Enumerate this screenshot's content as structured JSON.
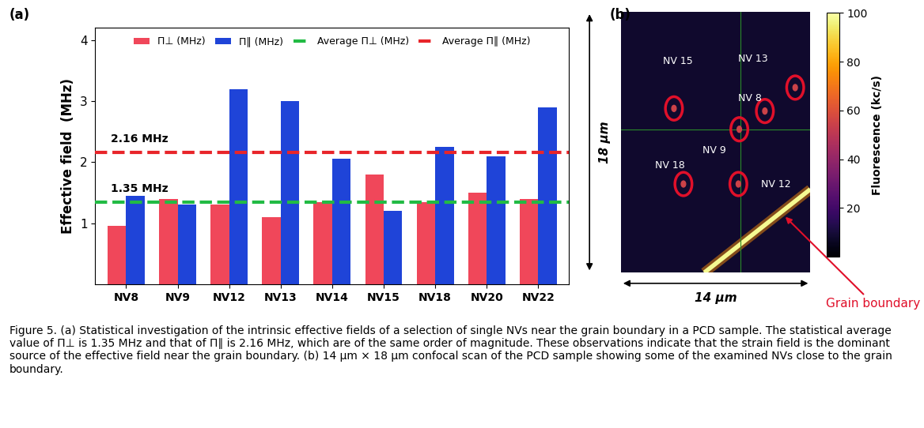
{
  "chart_data": {
    "type": "bar",
    "panel_label": "(a)",
    "categories": [
      "NV8",
      "NV9",
      "NV12",
      "NV13",
      "NV14",
      "NV15",
      "NV18",
      "NV20",
      "NV22"
    ],
    "series": [
      {
        "name": "Π⊥ (MHz)",
        "color": "#f0475a",
        "values": [
          0.95,
          1.4,
          1.3,
          1.1,
          1.35,
          1.8,
          1.35,
          1.5,
          1.4
        ]
      },
      {
        "name": "Π∥ (MHz)",
        "color": "#1f44d8",
        "values": [
          1.45,
          1.3,
          3.2,
          3.0,
          2.05,
          1.2,
          2.25,
          2.1,
          2.9
        ]
      }
    ],
    "reference_lines": [
      {
        "name": "Average Π⊥ (MHz)",
        "color": "#22bb44",
        "value": 1.35,
        "label": "1.35 MHz",
        "line_style": "dashed"
      },
      {
        "name": "Average Π∥ (MHz)",
        "color": "#e8252a",
        "value": 2.16,
        "label": "2.16 MHz",
        "line_style": "dashed"
      }
    ],
    "y_label": "Effective field  (MHz)",
    "ylim": [
      0,
      4.2
    ],
    "yticks": [
      1,
      2,
      3,
      4
    ],
    "legend": "upper center"
  },
  "image_panel": {
    "panel_label": "(b)",
    "height_label": "18 μm",
    "width_label": "14 μm",
    "markers": [
      "NV 15",
      "NV 13",
      "NV 8",
      "NV 9",
      "NV 18",
      "NV 12"
    ],
    "annotation": "Grain boundary",
    "colorbar": {
      "label": "Fluorescence (kc/s)",
      "range": [
        0,
        100
      ],
      "ticks": [
        20,
        40,
        60,
        80,
        100
      ]
    }
  },
  "caption": "Figure 5. (a) Statistical investigation of the intrinsic effective fields of a selection of single NVs near the grain boundary in a PCD sample. The statistical average value of Π⊥ is 1.35 MHz and that of Π∥ is 2.16 MHz, which are of the same order of magnitude. These observations indicate that the strain field is the dominant source of the effective field near the grain boundary. (b) 14 μm × 18 μm confocal scan of the PCD sample showing some of the examined NVs close to the grain boundary."
}
